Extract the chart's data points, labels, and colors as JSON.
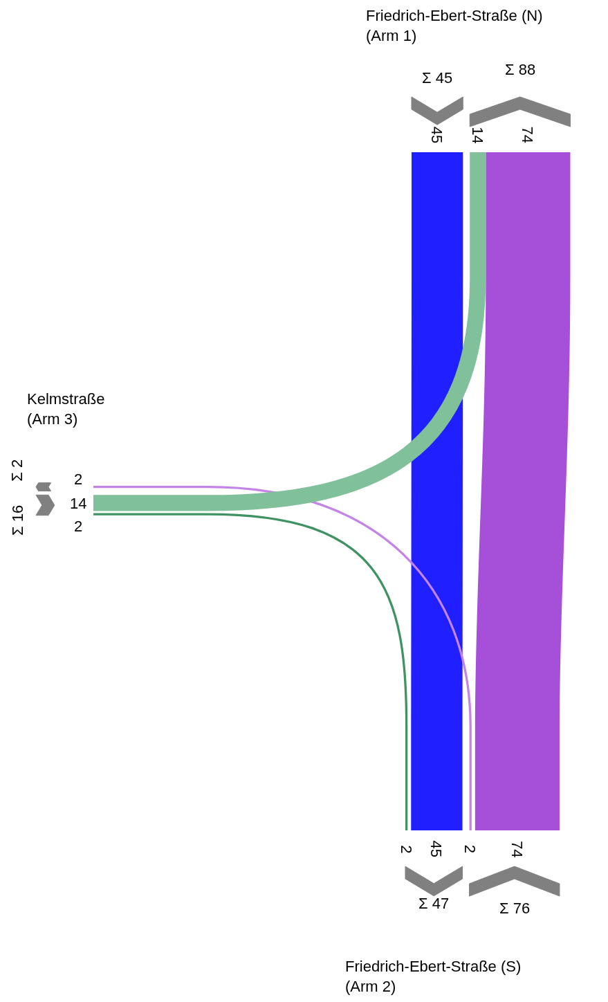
{
  "chart_data": {
    "type": "other",
    "categories": [
      "Friedrich-Ebert-Straße (N)\n(Arm 1)",
      "Friedrich-Ebert-Straße (S)\n(Arm 2)",
      "Kelmstraße\n(Arm 3)"
    ],
    "series": [
      {
        "values": [
          null,
          45,
          null
        ],
        "colors": [
          null,
          "#1f1fff",
          null
        ]
      },
      {
        "values": [
          74,
          null,
          2
        ],
        "colors": [
          "#a64fd8",
          null,
          "#c384e6"
        ]
      },
      {
        "values": [
          14,
          2,
          null
        ],
        "colors": [
          "#80c09a",
          "#3f9262",
          null
        ]
      }
    ],
    "data_labels": true,
    "annotations": [
      "14",
      "74",
      "2",
      "45",
      "2"
    ],
    "totals": [
      "Σ 45",
      "Σ 88",
      "Σ 76",
      "Σ 47",
      "Σ 16",
      "Σ 2"
    ]
  }
}
